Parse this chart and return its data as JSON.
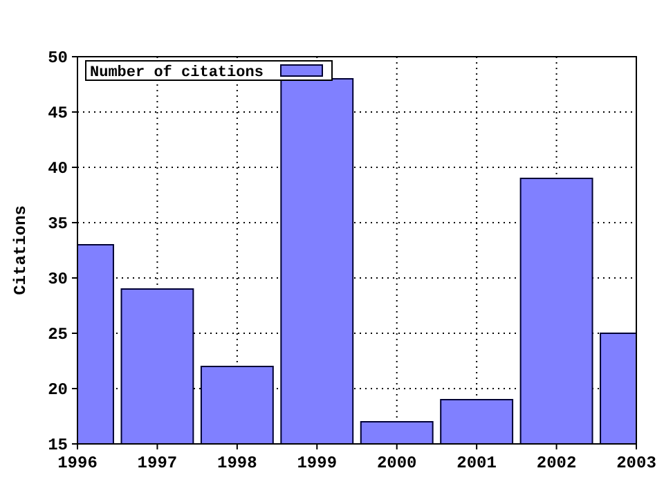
{
  "chart_data": {
    "type": "bar",
    "ylabel": "Citations",
    "x": [
      1996,
      1997,
      1998,
      1999,
      2000,
      2001,
      2002,
      2003
    ],
    "series": [
      {
        "name": "Number of citations",
        "color": "#8080ff",
        "values": [
          33,
          29,
          22,
          48,
          17,
          19,
          39,
          25
        ]
      }
    ],
    "xlim": [
      1996,
      2003
    ],
    "xticks": [
      1996,
      1997,
      1998,
      1999,
      2000,
      2001,
      2002,
      2003
    ],
    "ylim": [
      15,
      50
    ],
    "yticks": [
      15,
      20,
      25,
      30,
      35,
      40,
      45,
      50
    ],
    "grid": true,
    "legend": "top left"
  }
}
